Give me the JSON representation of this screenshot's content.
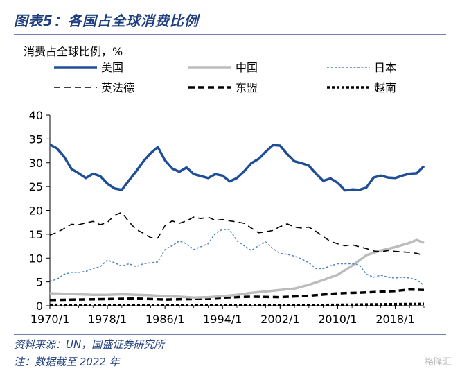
{
  "header": {
    "title": "图表5：各国占全球消费比例"
  },
  "footer": {
    "source": "资料来源：UN，国盛证券研究所",
    "note": "注：数据截至 2022 年"
  },
  "watermark": "格隆汇",
  "chart_data": {
    "type": "line",
    "ylabel": "消费占全球比例，%",
    "ylim": [
      0,
      40
    ],
    "yticks": [
      0,
      5,
      10,
      15,
      20,
      25,
      30,
      35,
      40
    ],
    "xlim": [
      1970,
      2022
    ],
    "xticks": [
      "1970/1",
      "1978/1",
      "1986/1",
      "1994/1",
      "2002/1",
      "2010/1",
      "2018/1"
    ],
    "legend_position": "top",
    "grid": false,
    "series": [
      {
        "name": "美国",
        "color": "#1f4e96",
        "style": "solid-thick",
        "x": [
          1970,
          1971,
          1972,
          1973,
          1974,
          1975,
          1976,
          1977,
          1978,
          1979,
          1980,
          1981,
          1982,
          1983,
          1984,
          1985,
          1986,
          1987,
          1988,
          1989,
          1990,
          1991,
          1992,
          1993,
          1994,
          1995,
          1996,
          1997,
          1998,
          1999,
          2000,
          2001,
          2002,
          2003,
          2004,
          2005,
          2006,
          2007,
          2008,
          2009,
          2010,
          2011,
          2012,
          2013,
          2014,
          2015,
          2016,
          2017,
          2018,
          2019,
          2020,
          2021,
          2022
        ],
        "values": [
          33.8,
          33.0,
          31.2,
          28.7,
          27.8,
          26.8,
          27.7,
          27.2,
          25.6,
          24.6,
          24.3,
          26.3,
          28.2,
          30.3,
          32.0,
          33.3,
          30.5,
          28.8,
          28.1,
          29.0,
          27.6,
          27.2,
          26.8,
          27.6,
          27.3,
          26.1,
          26.8,
          28.2,
          29.9,
          30.8,
          32.3,
          33.7,
          33.6,
          31.8,
          30.3,
          29.9,
          29.4,
          27.7,
          26.2,
          26.7,
          25.8,
          24.2,
          24.4,
          24.3,
          24.8,
          26.9,
          27.3,
          26.9,
          26.8,
          27.3,
          27.7,
          27.8,
          29.3
        ]
      },
      {
        "name": "中国",
        "color": "#bcbcbc",
        "style": "solid-thick",
        "x": [
          1970,
          1972,
          1974,
          1976,
          1978,
          1980,
          1982,
          1984,
          1986,
          1988,
          1990,
          1992,
          1994,
          1996,
          1998,
          2000,
          2002,
          2004,
          2006,
          2008,
          2010,
          2012,
          2014,
          2016,
          2018,
          2020,
          2021,
          2022
        ],
        "values": [
          2.6,
          2.5,
          2.4,
          2.3,
          2.3,
          2.4,
          2.3,
          2.2,
          2.0,
          1.9,
          1.7,
          1.8,
          2.0,
          2.3,
          2.7,
          3.0,
          3.3,
          3.6,
          4.4,
          5.4,
          6.5,
          8.4,
          10.6,
          11.6,
          12.3,
          13.2,
          13.8,
          13.2
        ]
      },
      {
        "name": "日本",
        "color": "#4f81bd",
        "style": "dotted",
        "x": [
          1970,
          1971,
          1972,
          1973,
          1974,
          1975,
          1976,
          1977,
          1978,
          1979,
          1980,
          1981,
          1982,
          1983,
          1984,
          1985,
          1986,
          1987,
          1988,
          1989,
          1990,
          1991,
          1992,
          1993,
          1994,
          1995,
          1996,
          1997,
          1998,
          1999,
          2000,
          2001,
          2002,
          2003,
          2004,
          2005,
          2006,
          2007,
          2008,
          2009,
          2010,
          2011,
          2012,
          2013,
          2014,
          2015,
          2016,
          2017,
          2018,
          2019,
          2020,
          2021,
          2022
        ],
        "values": [
          5.1,
          5.6,
          6.6,
          7.0,
          7.0,
          7.2,
          7.8,
          8.2,
          9.6,
          9.0,
          8.3,
          8.8,
          8.2,
          8.8,
          9.0,
          9.2,
          11.8,
          12.6,
          13.6,
          13.0,
          11.8,
          12.4,
          13.0,
          15.2,
          16.0,
          16.0,
          13.6,
          12.6,
          11.6,
          12.6,
          13.4,
          12.0,
          11.0,
          10.8,
          10.4,
          9.8,
          9.0,
          7.8,
          7.8,
          8.4,
          8.8,
          8.8,
          8.8,
          8.6,
          6.6,
          6.0,
          6.4,
          6.0,
          5.8,
          6.0,
          5.8,
          5.4,
          4.3
        ]
      },
      {
        "name": "英法德",
        "color": "#000000",
        "style": "dash-long",
        "x": [
          1970,
          1971,
          1972,
          1973,
          1974,
          1975,
          1976,
          1977,
          1978,
          1979,
          1980,
          1981,
          1982,
          1983,
          1984,
          1985,
          1986,
          1987,
          1988,
          1989,
          1990,
          1991,
          1992,
          1993,
          1994,
          1995,
          1996,
          1997,
          1998,
          1999,
          2000,
          2001,
          2002,
          2003,
          2004,
          2005,
          2006,
          2007,
          2008,
          2009,
          2010,
          2011,
          2012,
          2013,
          2014,
          2015,
          2016,
          2017,
          2018,
          2019,
          2020,
          2021,
          2022
        ],
        "values": [
          14.8,
          15.4,
          16.2,
          17.1,
          17.0,
          17.4,
          17.7,
          17.0,
          17.5,
          19.0,
          19.6,
          17.6,
          16.0,
          15.2,
          14.3,
          14.2,
          16.8,
          17.8,
          17.3,
          17.8,
          18.6,
          18.3,
          18.6,
          17.9,
          18.1,
          17.8,
          17.6,
          17.3,
          16.3,
          15.3,
          15.5,
          15.8,
          16.6,
          17.2,
          16.5,
          16.3,
          16.5,
          15.6,
          14.5,
          13.5,
          13.0,
          12.6,
          12.8,
          12.4,
          12.0,
          11.5,
          11.3,
          11.6,
          11.4,
          11.3,
          11.2,
          11.0,
          10.5
        ]
      },
      {
        "name": "东盟",
        "color": "#000000",
        "style": "dash-thick",
        "x": [
          1970,
          1974,
          1978,
          1982,
          1986,
          1990,
          1994,
          1998,
          2002,
          2006,
          2010,
          2014,
          2018,
          2020,
          2022
        ],
        "values": [
          1.2,
          1.3,
          1.4,
          1.5,
          1.3,
          1.4,
          1.7,
          1.9,
          1.8,
          2.1,
          2.6,
          2.8,
          3.1,
          3.4,
          3.3
        ]
      },
      {
        "name": "越南",
        "color": "#000000",
        "style": "dotted-thick",
        "x": [
          1970,
          1980,
          1990,
          2000,
          2010,
          2016,
          2022
        ],
        "values": [
          0.2,
          0.1,
          0.1,
          0.1,
          0.2,
          0.3,
          0.4
        ]
      }
    ]
  }
}
